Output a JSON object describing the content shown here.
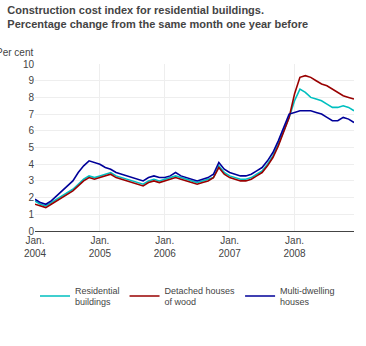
{
  "chart_data": {
    "type": "line",
    "title": "Construction cost index for residential buildings.",
    "subtitle": "Percentage change from the same month one year before",
    "y_label": "Per cent",
    "categories": [
      "Jan.\n2004",
      null,
      null,
      null,
      null,
      null,
      null,
      null,
      null,
      null,
      null,
      null,
      "Jan.\n2005",
      null,
      null,
      null,
      null,
      null,
      null,
      null,
      null,
      null,
      null,
      null,
      "Jan.\n2006",
      null,
      null,
      null,
      null,
      null,
      null,
      null,
      null,
      null,
      null,
      null,
      "Jan.\n2007",
      null,
      null,
      null,
      null,
      null,
      null,
      null,
      null,
      null,
      null,
      null,
      "Jan.\n2008",
      null,
      null,
      null,
      null,
      null,
      null,
      null,
      null,
      null,
      null,
      null
    ],
    "series": [
      {
        "name": "Residential\nbuildings",
        "color": "#00BFBF",
        "values": [
          1.8,
          1.6,
          1.5,
          1.7,
          1.9,
          2.1,
          2.3,
          2.5,
          2.8,
          3.1,
          3.3,
          3.2,
          3.3,
          3.4,
          3.5,
          3.3,
          3.2,
          3.1,
          3.0,
          2.9,
          2.8,
          3.0,
          3.1,
          3.0,
          3.1,
          3.2,
          3.3,
          3.2,
          3.1,
          3.0,
          2.9,
          3.0,
          3.1,
          3.2,
          3.9,
          3.5,
          3.3,
          3.2,
          3.1,
          3.1,
          3.2,
          3.4,
          3.6,
          4.0,
          4.5,
          5.2,
          6.0,
          6.8,
          7.8,
          8.5,
          8.3,
          8.0,
          7.9,
          7.8,
          7.6,
          7.4,
          7.4,
          7.5,
          7.4,
          7.2
        ]
      },
      {
        "name": "Detached houses\nof wood",
        "color": "#990000",
        "values": [
          1.6,
          1.5,
          1.4,
          1.6,
          1.8,
          2.0,
          2.2,
          2.4,
          2.7,
          3.0,
          3.2,
          3.1,
          3.2,
          3.3,
          3.4,
          3.2,
          3.1,
          3.0,
          2.9,
          2.8,
          2.7,
          2.9,
          3.0,
          2.9,
          3.0,
          3.1,
          3.2,
          3.1,
          3.0,
          2.9,
          2.8,
          2.9,
          3.0,
          3.2,
          3.8,
          3.4,
          3.2,
          3.1,
          3.0,
          3.0,
          3.1,
          3.3,
          3.5,
          3.9,
          4.4,
          5.1,
          5.9,
          6.8,
          8.2,
          9.2,
          9.3,
          9.2,
          9.0,
          8.8,
          8.7,
          8.5,
          8.3,
          8.1,
          8.0,
          7.9
        ]
      },
      {
        "name": "Multi-dwelling\nhouses",
        "color": "#000099",
        "values": [
          1.9,
          1.7,
          1.6,
          1.8,
          2.1,
          2.4,
          2.7,
          3.0,
          3.5,
          3.9,
          4.2,
          4.1,
          4.0,
          3.8,
          3.7,
          3.5,
          3.4,
          3.3,
          3.2,
          3.1,
          3.0,
          3.2,
          3.3,
          3.2,
          3.2,
          3.3,
          3.5,
          3.3,
          3.2,
          3.1,
          3.0,
          3.1,
          3.2,
          3.4,
          4.1,
          3.7,
          3.5,
          3.4,
          3.3,
          3.3,
          3.4,
          3.6,
          3.8,
          4.2,
          4.7,
          5.4,
          6.2,
          7.0,
          7.1,
          7.2,
          7.2,
          7.2,
          7.1,
          7.0,
          6.8,
          6.6,
          6.6,
          6.8,
          6.7,
          6.5
        ]
      }
    ],
    "ylim": [
      0,
      10
    ],
    "yticks": [
      0,
      1,
      2,
      3,
      4,
      5,
      6,
      7,
      8,
      9,
      10
    ],
    "grid": true,
    "legend": "bottom"
  }
}
